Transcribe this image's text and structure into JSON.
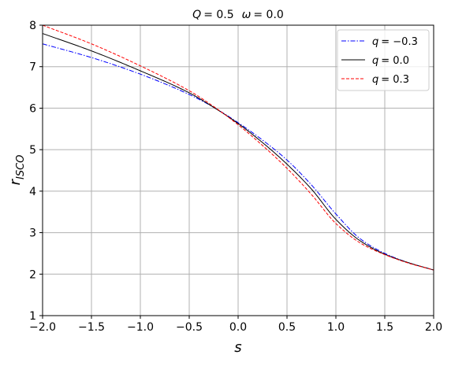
{
  "chart_data": {
    "type": "line",
    "title": "Q = 0.5  ω = 0.0",
    "title_parts": {
      "q_symbol": "Q",
      "q_value": "= 0.5",
      "omega_symbol": "ω",
      "omega_value": "= 0.0"
    },
    "xlabel": "s",
    "ylabel": {
      "base": "r",
      "subscript": "ISCO"
    },
    "xlim": [
      -2.0,
      2.0
    ],
    "ylim": [
      1,
      8
    ],
    "xticks": [
      -2.0,
      -1.5,
      -1.0,
      -0.5,
      0.0,
      0.5,
      1.0,
      1.5,
      2.0
    ],
    "xtick_labels": [
      "−2.0",
      "−1.5",
      "−1.0",
      "−0.5",
      "0.0",
      "0.5",
      "1.0",
      "1.5",
      "2.0"
    ],
    "yticks": [
      1,
      2,
      3,
      4,
      5,
      6,
      7,
      8
    ],
    "ytick_labels": [
      "1",
      "2",
      "3",
      "4",
      "5",
      "6",
      "7",
      "8"
    ],
    "grid": true,
    "legend_position": "top-right",
    "series": [
      {
        "name": "q = −0.3",
        "legend_symbol": "q",
        "legend_value": "= −0.3",
        "color": "#0000ff",
        "style": "dashdot",
        "x": [
          -2.0,
          -1.5,
          -1.0,
          -0.5,
          -0.25,
          0.0,
          0.25,
          0.5,
          0.75,
          1.0,
          1.25,
          1.5,
          1.75,
          2.0
        ],
        "y": [
          7.55,
          7.22,
          6.82,
          6.33,
          6.02,
          5.65,
          5.23,
          4.75,
          4.15,
          3.45,
          2.85,
          2.5,
          2.27,
          2.1
        ]
      },
      {
        "name": "q = 0.0",
        "legend_symbol": "q",
        "legend_value": "= 0.0",
        "color": "#000000",
        "style": "solid",
        "x": [
          -2.0,
          -1.5,
          -1.0,
          -0.5,
          -0.25,
          0.0,
          0.25,
          0.5,
          0.75,
          1.0,
          1.25,
          1.5,
          1.75,
          2.0
        ],
        "y": [
          7.8,
          7.38,
          6.9,
          6.37,
          6.02,
          5.63,
          5.17,
          4.65,
          4.05,
          3.32,
          2.8,
          2.48,
          2.27,
          2.1
        ]
      },
      {
        "name": "q = 0.3",
        "legend_symbol": "q",
        "legend_value": "= 0.3",
        "color": "#ff0000",
        "style": "dashed",
        "x": [
          -2.0,
          -1.5,
          -1.0,
          -0.5,
          -0.25,
          0.0,
          0.25,
          0.5,
          0.75,
          1.0,
          1.25,
          1.5,
          1.75,
          2.0
        ],
        "y": [
          8.0,
          7.55,
          7.02,
          6.42,
          6.04,
          5.6,
          5.1,
          4.55,
          3.92,
          3.22,
          2.75,
          2.47,
          2.26,
          2.1
        ]
      }
    ]
  }
}
